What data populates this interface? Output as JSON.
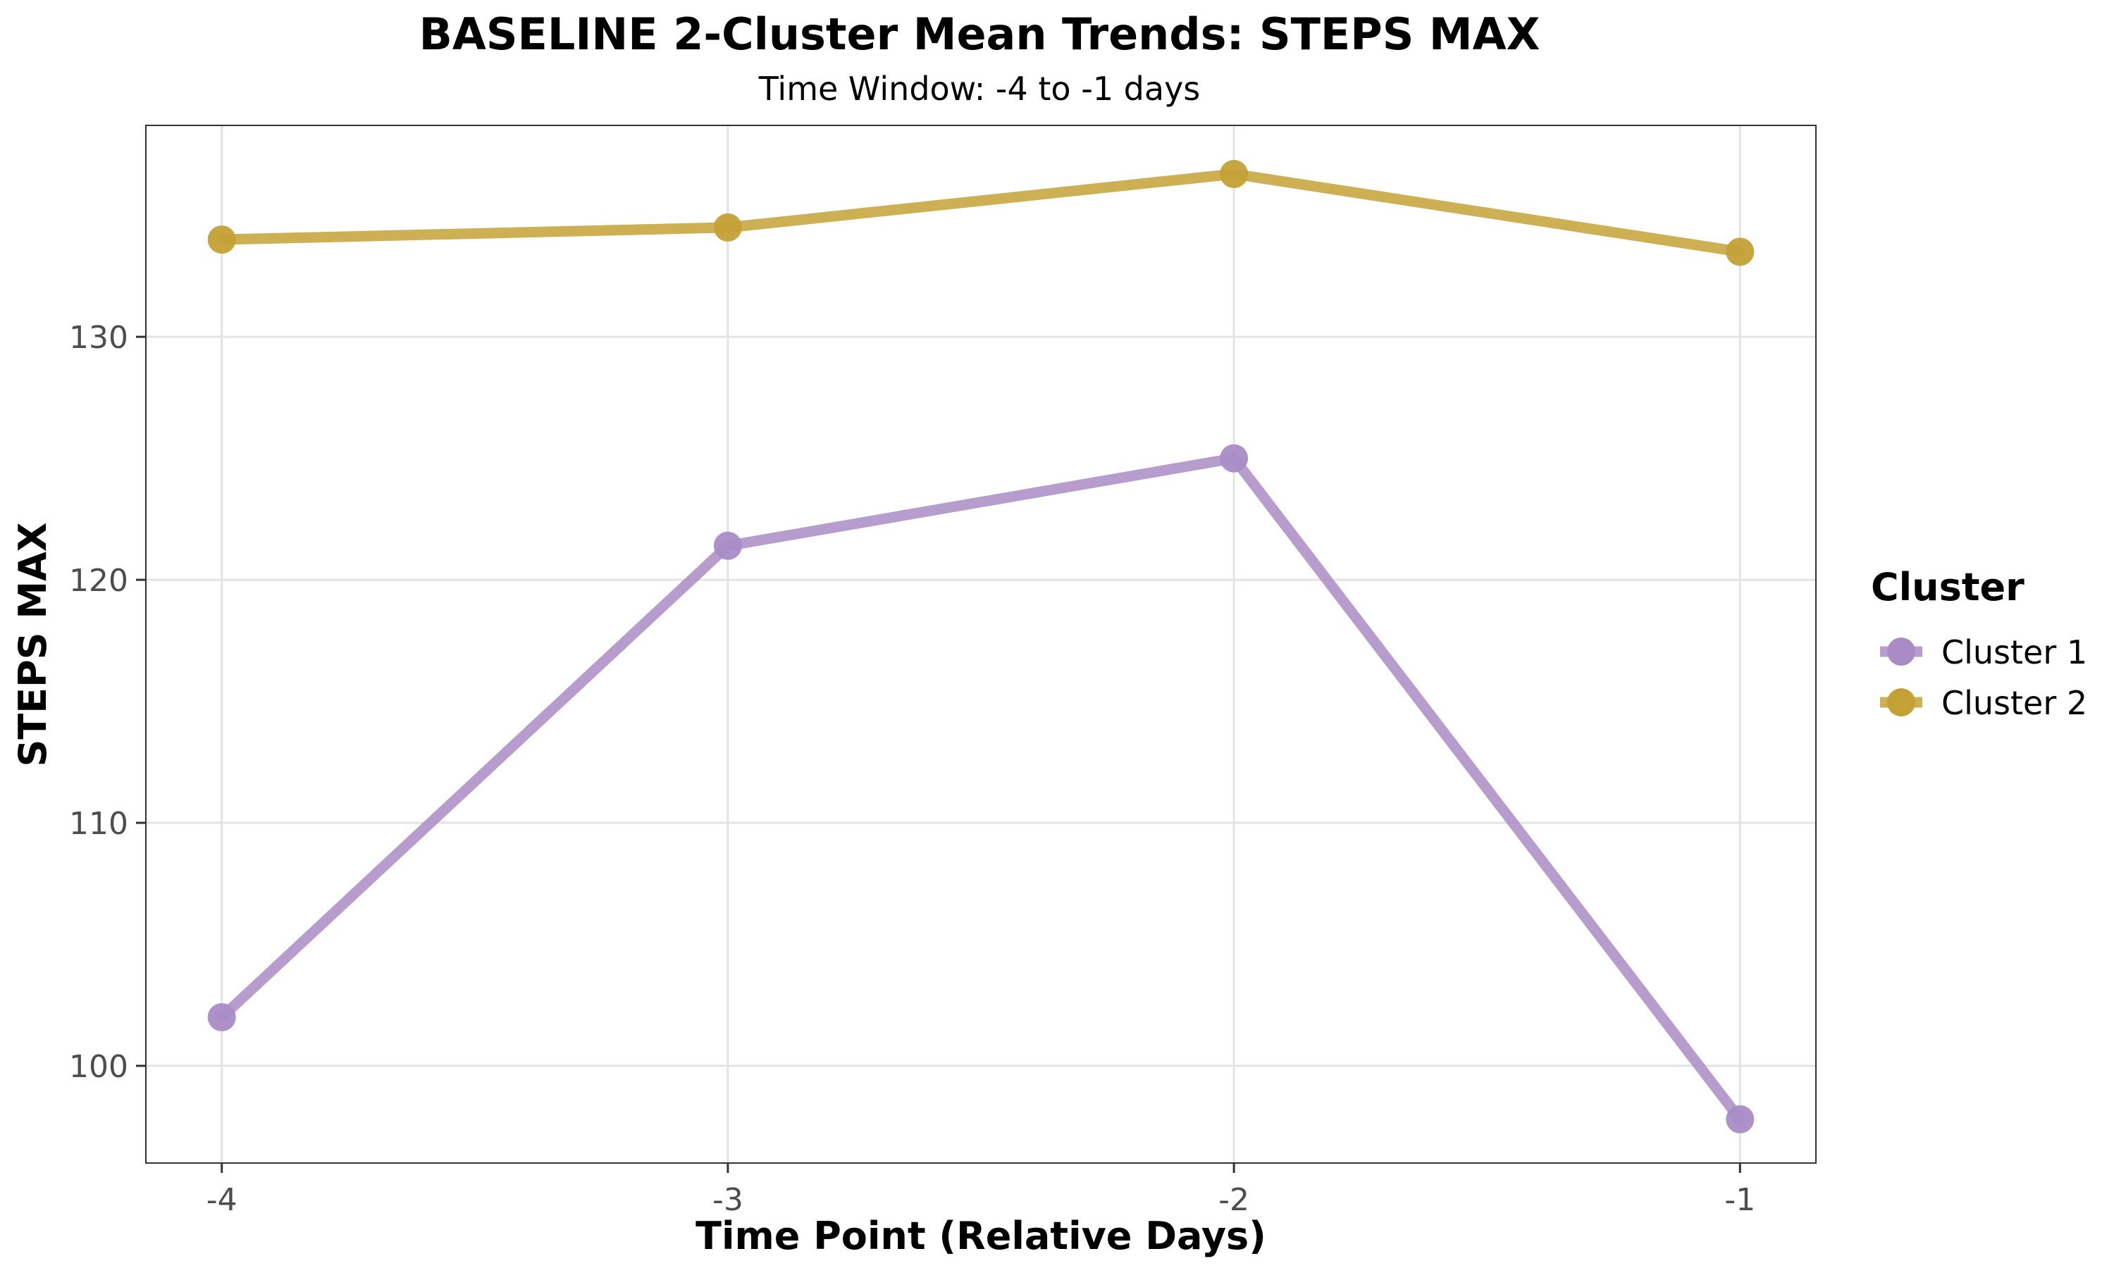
{
  "chart_data": {
    "type": "line",
    "title": "BASELINE 2-Cluster Mean Trends: STEPS MAX",
    "subtitle": "Time Window: -4 to -1 days",
    "xlabel": "Time Point (Relative Days)",
    "ylabel": "STEPS MAX",
    "x": [
      -4,
      -3,
      -2,
      -1
    ],
    "x_tick_labels": [
      "-4",
      "-3",
      "-2",
      "-1"
    ],
    "xlim": [
      -4.15,
      -0.85
    ],
    "ylim": [
      96,
      138.7
    ],
    "y_ticks": [
      100,
      110,
      120,
      130
    ],
    "y_tick_labels": [
      "100",
      "110",
      "120",
      "130"
    ],
    "grid": true,
    "legend": {
      "title": "Cluster",
      "position": "right"
    },
    "series": [
      {
        "name": "Cluster 1",
        "values": [
          102.0,
          121.4,
          125.0,
          97.8
        ],
        "color": "#a98cc6"
      },
      {
        "name": "Cluster 2",
        "values": [
          134.0,
          134.5,
          136.7,
          133.5
        ],
        "color": "#c4a136"
      }
    ]
  }
}
